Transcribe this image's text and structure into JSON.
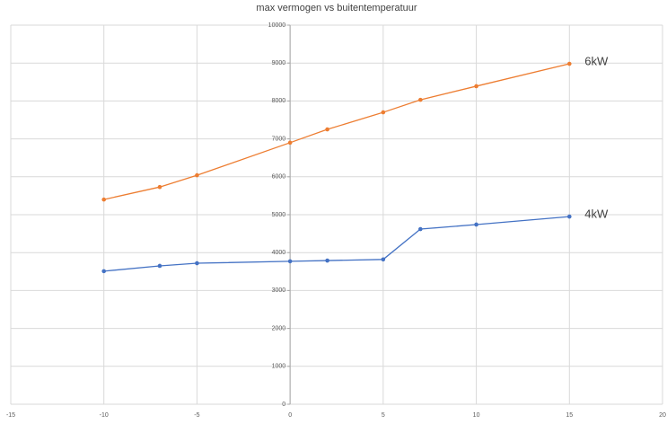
{
  "chart_data": {
    "type": "scatter-line",
    "title": "max vermogen vs buitentemperatuur",
    "x": [
      -10,
      -7,
      -5,
      0,
      2,
      5,
      7,
      10,
      15
    ],
    "series": [
      {
        "name": "6kW",
        "color": "#ed7d31",
        "values": [
          5400,
          5730,
          6040,
          6900,
          7250,
          7700,
          8030,
          8390,
          8980
        ]
      },
      {
        "name": "4kW",
        "color": "#4472c4",
        "values": [
          3510,
          3650,
          3720,
          3770,
          3790,
          3820,
          4620,
          4740,
          4950
        ]
      }
    ],
    "xlim": [
      -15,
      20
    ],
    "xticks": [
      -15,
      -10,
      -5,
      0,
      5,
      10,
      15,
      20
    ],
    "ylim": [
      0,
      10000
    ],
    "yticks": [
      0,
      1000,
      2000,
      3000,
      4000,
      5000,
      6000,
      7000,
      8000,
      9000,
      10000
    ],
    "grid": true
  }
}
